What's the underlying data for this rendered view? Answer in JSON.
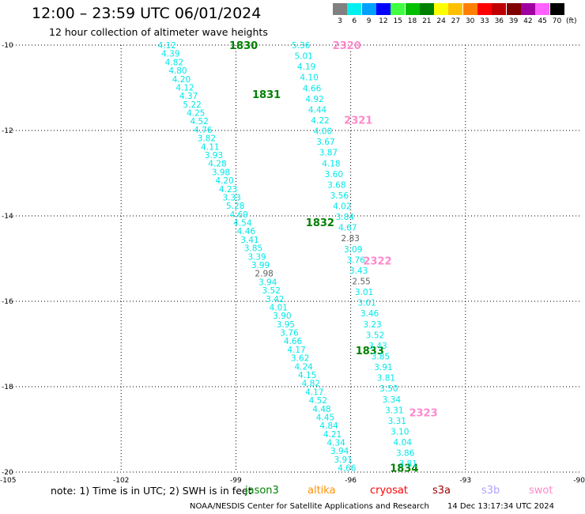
{
  "title": "12:00 – 23:59 UTC 06/01/2024",
  "subtitle": "12 hour collection of altimeter wave heights",
  "legend_scale": {
    "unit": "(ft)",
    "bins": [
      {
        "label": "3",
        "color": "#808080"
      },
      {
        "label": "6",
        "color": "#00f0f0"
      },
      {
        "label": "9",
        "color": "#00a0ff"
      },
      {
        "label": "12",
        "color": "#0000ff"
      },
      {
        "label": "15",
        "color": "#40ff40"
      },
      {
        "label": "18",
        "color": "#00c000"
      },
      {
        "label": "21",
        "color": "#008000"
      },
      {
        "label": "24",
        "color": "#ffff00"
      },
      {
        "label": "27",
        "color": "#ffc000"
      },
      {
        "label": "30",
        "color": "#ff8000"
      },
      {
        "label": "33",
        "color": "#ff0000"
      },
      {
        "label": "36",
        "color": "#c00000"
      },
      {
        "label": "39",
        "color": "#800000"
      },
      {
        "label": "42",
        "color": "#a000a0"
      },
      {
        "label": "45",
        "color": "#ff60ff"
      },
      {
        "label": "70",
        "color": "#000000"
      }
    ]
  },
  "chart_data": {
    "type": "scatter",
    "xlim": [
      -105,
      -90
    ],
    "ylim": [
      -20,
      -10
    ],
    "x_ticks": [
      "-105",
      "-102",
      "-99",
      "-96",
      "-93",
      "-90"
    ],
    "y_ticks": [
      "-10",
      "-12",
      "-14",
      "-16",
      "-18",
      "-20"
    ],
    "grid": true,
    "colors": {
      "cyan": "#00e8e8",
      "grey": "#606060",
      "green": "#008000",
      "pink": "#ff88cc"
    },
    "tracks": [
      {
        "satellite": "jason3",
        "lon_start": -100.8,
        "lat_start": -10.0,
        "lon_end": -96.1,
        "lat_end": -19.9,
        "values": [
          "4.12",
          "4.39",
          "4.82",
          "4.80",
          "4.20",
          "4.12",
          "4.37",
          "5.22",
          "4.25",
          "4.52",
          "4.76",
          "3.82",
          "4.11",
          "3.93",
          "4.28",
          "3.98",
          "4.20",
          "4.23",
          "3.33",
          "5.28",
          "4.69",
          "4.54",
          "4.46",
          "3.41",
          "3.85",
          "3.39",
          "3.99",
          "2.98",
          "3.94",
          "3.52",
          "3.42",
          "4.01",
          "3.90",
          "3.95",
          "3.76",
          "4.66",
          "4.17",
          "3.62",
          "4.24",
          "4.15",
          "4.82",
          "4.17",
          "4.52",
          "4.48",
          "4.45",
          "4.84",
          "4.21",
          "4.34",
          "3.94",
          "3.91",
          "4.66"
        ],
        "value_colors": {
          "2.98": "grey"
        },
        "time_labels": [
          {
            "text": "1830",
            "lat": -10.0,
            "lon": -98.8
          },
          {
            "text": "1831",
            "lat": -11.15,
            "lon": -98.2
          },
          {
            "text": "1832",
            "lat": -14.15,
            "lon": -96.8
          },
          {
            "text": "1833",
            "lat": -17.15,
            "lon": -95.5
          },
          {
            "text": "1834",
            "lat": -19.9,
            "lon": -94.6
          }
        ],
        "label_color": "green"
      },
      {
        "satellite": "swot",
        "lon_start": -97.3,
        "lat_start": -10.0,
        "lon_end": -94.5,
        "lat_end": -19.8,
        "values": [
          "5.36",
          "5.01",
          "4.19",
          "4.10",
          "4.66",
          "4.92",
          "4.44",
          "4.22",
          "4.00",
          "3.67",
          "3.87",
          "4.18",
          "3.60",
          "3.68",
          "3.56",
          "4.02",
          "3.84",
          "4.67",
          "2.83",
          "3.09",
          "3.76",
          "3.43",
          "2.55",
          "3.01",
          "3.01",
          "3.46",
          "3.23",
          "3.52",
          "3.43",
          "3.85",
          "3.91",
          "3.81",
          "3.50",
          "3.34",
          "3.31",
          "3.31",
          "3.10",
          "4.04",
          "3.86",
          "3.81"
        ],
        "value_colors": {
          "2.83": "grey",
          "2.55": "grey"
        },
        "time_labels": [
          {
            "text": "2320",
            "lat": -10.0,
            "lon": -96.1
          },
          {
            "text": "2321",
            "lat": -11.75,
            "lon": -95.8
          },
          {
            "text": "2322",
            "lat": -15.05,
            "lon": -95.3
          },
          {
            "text": "2323",
            "lat": -18.6,
            "lon": -94.1
          }
        ],
        "label_color": "pink"
      }
    ]
  },
  "footer": {
    "note": "note:  1) Time is in UTC; 2) SWH is in feet",
    "satellites": [
      {
        "name": "jason3",
        "color": "#008000"
      },
      {
        "name": "altika",
        "color": "#ff9000"
      },
      {
        "name": "cryosat",
        "color": "#ff0000"
      },
      {
        "name": "s3a",
        "color": "#a00000"
      },
      {
        "name": "s3b",
        "color": "#b0a0ff"
      },
      {
        "name": "swot",
        "color": "#ff88cc"
      }
    ],
    "credit": "NOAA/NESDIS Center for Satellite Applications and Research",
    "timestamp": "14 Dec 13:17:34 UTC 2024"
  }
}
